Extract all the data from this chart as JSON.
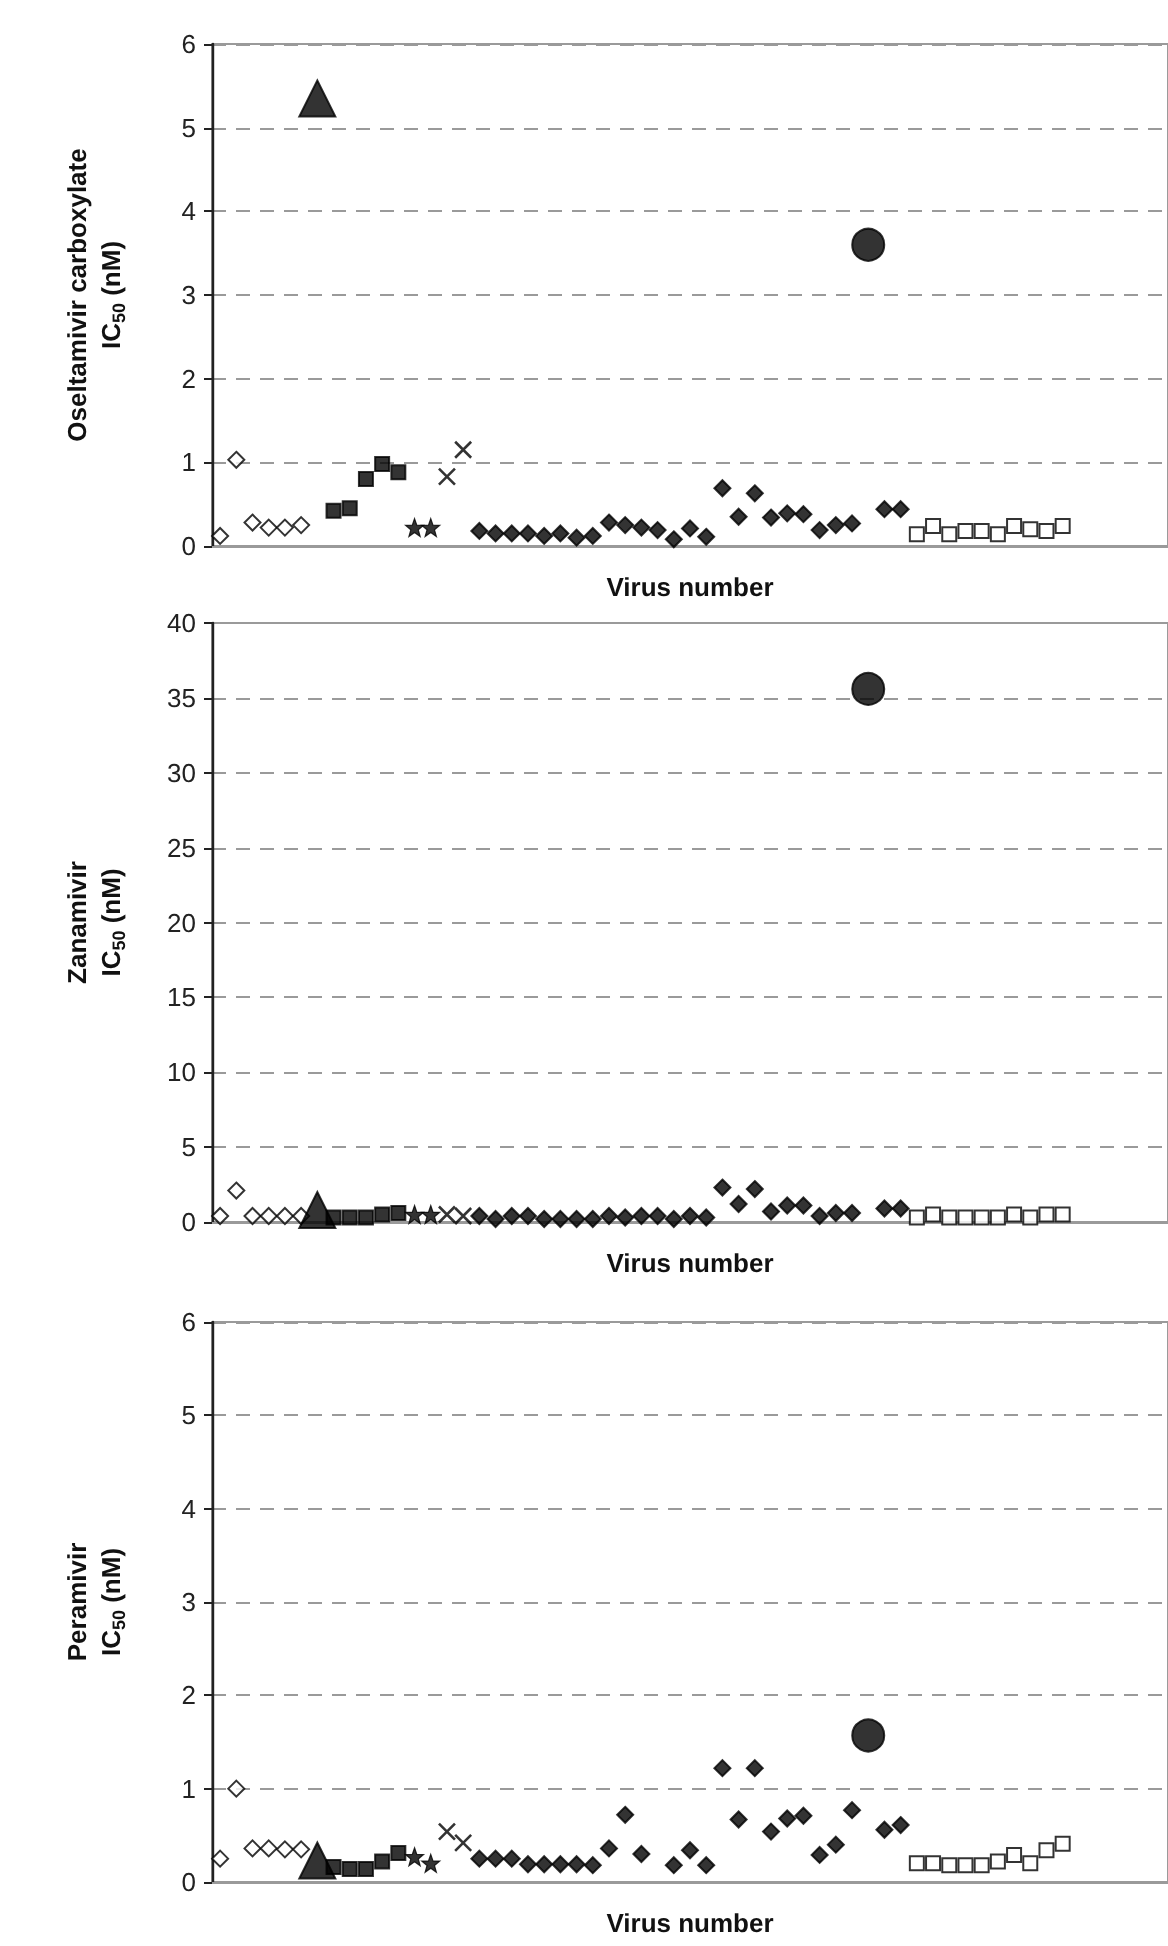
{
  "chart_data": [
    {
      "type": "scatter",
      "ylabel": "Oseltamivir carboxylate\nIC$_{50}$ (nM)",
      "xlabel": "Virus number",
      "tick_labels": "y",
      "grid": "y",
      "ylim": [
        0,
        6
      ],
      "yticks": [
        0,
        1,
        2,
        3,
        4,
        5,
        6
      ],
      "categories": [
        null,
        null,
        null,
        null,
        null,
        null,
        null,
        null,
        null,
        null,
        null,
        null,
        null,
        null,
        null,
        null,
        null,
        null,
        null,
        null,
        null,
        null,
        null,
        null,
        null,
        null,
        null,
        null,
        null,
        null,
        null,
        null,
        null,
        null,
        null,
        null,
        null,
        null,
        null,
        null,
        null,
        null,
        null,
        null,
        null,
        null,
        null,
        null,
        null,
        null,
        null,
        null,
        null,
        null,
        null,
        null,
        null,
        null,
        null
      ],
      "series": [
        {
          "color": "#ffffff",
          "marker": "diamond",
          "values": [
            0.12,
            1.03,
            0.28,
            0.22,
            0.22,
            0.25,
            null,
            null,
            null,
            null,
            null,
            null,
            null,
            null,
            null,
            null,
            null,
            null,
            null,
            null,
            null,
            null,
            null,
            null,
            null,
            null,
            null,
            null,
            null,
            null,
            null,
            null,
            null,
            null,
            null,
            null,
            null,
            null,
            null,
            null,
            null,
            null,
            null,
            null,
            null,
            null,
            null,
            null,
            null,
            null,
            null,
            null,
            null,
            null,
            null,
            null,
            null,
            null,
            null
          ]
        },
        {
          "color": "#000000",
          "marker": "triangle",
          "values": [
            null,
            null,
            null,
            null,
            null,
            null,
            5.35,
            null,
            null,
            null,
            null,
            null,
            null,
            null,
            null,
            null,
            null,
            null,
            null,
            null,
            null,
            null,
            null,
            null,
            null,
            null,
            null,
            null,
            null,
            null,
            null,
            null,
            null,
            null,
            null,
            null,
            null,
            null,
            null,
            null,
            null,
            null,
            null,
            null,
            null,
            null,
            null,
            null,
            null,
            null,
            null,
            null,
            null,
            null,
            null,
            null,
            null,
            null,
            null
          ]
        },
        {
          "color": "#000000",
          "marker": "square",
          "values": [
            null,
            null,
            null,
            null,
            null,
            null,
            null,
            0.42,
            0.45,
            0.8,
            0.98,
            0.88,
            null,
            null,
            null,
            null,
            null,
            null,
            null,
            null,
            null,
            null,
            null,
            null,
            null,
            null,
            null,
            null,
            null,
            null,
            null,
            null,
            null,
            null,
            null,
            null,
            null,
            null,
            null,
            null,
            null,
            null,
            null,
            null,
            null,
            null,
            null,
            null,
            null,
            null,
            null,
            null,
            null,
            null,
            null,
            null,
            null,
            null,
            null
          ]
        },
        {
          "color": "#000000",
          "marker": "star",
          "values": [
            null,
            null,
            null,
            null,
            null,
            null,
            null,
            null,
            null,
            null,
            null,
            null,
            0.22,
            0.22,
            null,
            null,
            null,
            null,
            null,
            null,
            null,
            null,
            null,
            null,
            null,
            null,
            null,
            null,
            null,
            null,
            null,
            null,
            null,
            null,
            null,
            null,
            null,
            null,
            null,
            null,
            null,
            null,
            null,
            null,
            null,
            null,
            null,
            null,
            null,
            null,
            null,
            null,
            null,
            null,
            null,
            null,
            null,
            null,
            null
          ]
        },
        {
          "color": "#000000",
          "marker": "cross",
          "values": [
            null,
            null,
            null,
            null,
            null,
            null,
            null,
            null,
            null,
            null,
            null,
            null,
            null,
            null,
            0.83,
            1.15,
            null,
            null,
            null,
            null,
            null,
            null,
            null,
            null,
            null,
            null,
            null,
            null,
            null,
            null,
            null,
            null,
            null,
            null,
            null,
            null,
            null,
            null,
            null,
            null,
            null,
            null,
            null,
            null,
            null,
            null,
            null,
            null,
            null,
            null,
            null,
            null,
            null,
            null,
            null,
            null,
            null,
            null,
            null
          ]
        },
        {
          "color": "#000000",
          "marker": "diamond",
          "values": [
            null,
            null,
            null,
            null,
            null,
            null,
            null,
            null,
            null,
            null,
            null,
            null,
            null,
            null,
            null,
            null,
            0.18,
            0.15,
            0.15,
            0.15,
            0.12,
            0.15,
            0.1,
            0.12,
            0.28,
            0.25,
            0.22,
            0.19,
            0.08,
            0.21,
            0.11,
            0.69,
            0.35,
            0.63,
            0.34,
            0.39,
            0.38,
            0.19,
            0.25,
            0.27,
            null,
            0.44,
            0.44,
            null,
            null,
            null,
            null,
            null,
            null,
            null,
            null,
            null,
            null,
            null,
            null,
            null,
            null,
            null,
            null
          ]
        },
        {
          "color": "#000000",
          "marker": "circle",
          "values": [
            null,
            null,
            null,
            null,
            null,
            null,
            null,
            null,
            null,
            null,
            null,
            null,
            null,
            null,
            null,
            null,
            null,
            null,
            null,
            null,
            null,
            null,
            null,
            null,
            null,
            null,
            null,
            null,
            null,
            null,
            null,
            null,
            null,
            null,
            null,
            null,
            null,
            null,
            null,
            null,
            3.6,
            null,
            null,
            null,
            null,
            null,
            null,
            null,
            null,
            null,
            null,
            null,
            null,
            null,
            null,
            null,
            null,
            null,
            null
          ]
        },
        {
          "color": "#ffffff",
          "marker": "square",
          "values": [
            null,
            null,
            null,
            null,
            null,
            null,
            null,
            null,
            null,
            null,
            null,
            null,
            null,
            null,
            null,
            null,
            null,
            null,
            null,
            null,
            null,
            null,
            null,
            null,
            null,
            null,
            null,
            null,
            null,
            null,
            null,
            null,
            null,
            null,
            null,
            null,
            null,
            null,
            null,
            null,
            null,
            null,
            null,
            0.14,
            0.24,
            0.14,
            0.18,
            0.18,
            0.14,
            0.24,
            0.2,
            0.18,
            0.24,
            null,
            null,
            null,
            null,
            null,
            null
          ]
        }
      ]
    },
    {
      "type": "scatter",
      "ylabel": "Zanamivir\nIC$_{50}$ (nM)",
      "xlabel": "Virus number",
      "tick_labels": "y",
      "grid": "y",
      "ylim": [
        0,
        40
      ],
      "yticks": [
        0,
        5,
        10,
        15,
        20,
        25,
        30,
        35,
        40
      ],
      "categories": [
        null,
        null,
        null,
        null,
        null,
        null,
        null,
        null,
        null,
        null,
        null,
        null,
        null,
        null,
        null,
        null,
        null,
        null,
        null,
        null,
        null,
        null,
        null,
        null,
        null,
        null,
        null,
        null,
        null,
        null,
        null,
        null,
        null,
        null,
        null,
        null,
        null,
        null,
        null,
        null,
        null,
        null,
        null,
        null,
        null,
        null,
        null,
        null,
        null,
        null,
        null,
        null,
        null,
        null,
        null,
        null,
        null,
        null,
        null
      ],
      "series": [
        {
          "color": "#ffffff",
          "marker": "diamond",
          "values": [
            0.4,
            2.1,
            0.4,
            0.4,
            0.4,
            0.4,
            null,
            null,
            null,
            null,
            null,
            null,
            null,
            null,
            null,
            null,
            null,
            null,
            null,
            null,
            null,
            null,
            null,
            null,
            null,
            null,
            null,
            null,
            null,
            null,
            null,
            null,
            null,
            null,
            null,
            null,
            null,
            null,
            null,
            null,
            null,
            null,
            null,
            null,
            null,
            null,
            null,
            null,
            null,
            null,
            null,
            null,
            null,
            null,
            null,
            null,
            null,
            null,
            null
          ]
        },
        {
          "color": "#000000",
          "marker": "triangle",
          "values": [
            null,
            null,
            null,
            null,
            null,
            null,
            0.8,
            null,
            null,
            null,
            null,
            null,
            null,
            null,
            null,
            null,
            null,
            null,
            null,
            null,
            null,
            null,
            null,
            null,
            null,
            null,
            null,
            null,
            null,
            null,
            null,
            null,
            null,
            null,
            null,
            null,
            null,
            null,
            null,
            null,
            null,
            null,
            null,
            null,
            null,
            null,
            null,
            null,
            null,
            null,
            null,
            null,
            null,
            null,
            null,
            null,
            null,
            null,
            null
          ]
        },
        {
          "color": "#000000",
          "marker": "square",
          "values": [
            null,
            null,
            null,
            null,
            null,
            null,
            null,
            0.3,
            0.3,
            0.3,
            0.5,
            0.6,
            null,
            null,
            null,
            null,
            null,
            null,
            null,
            null,
            null,
            null,
            null,
            null,
            null,
            null,
            null,
            null,
            null,
            null,
            null,
            null,
            null,
            null,
            null,
            null,
            null,
            null,
            null,
            null,
            null,
            null,
            null,
            null,
            null,
            null,
            null,
            null,
            null,
            null,
            null,
            null,
            null,
            null,
            null,
            null,
            null,
            null,
            null
          ]
        },
        {
          "color": "#000000",
          "marker": "star",
          "values": [
            null,
            null,
            null,
            null,
            null,
            null,
            null,
            null,
            null,
            null,
            null,
            null,
            0.5,
            0.5,
            null,
            null,
            null,
            null,
            null,
            null,
            null,
            null,
            null,
            null,
            null,
            null,
            null,
            null,
            null,
            null,
            null,
            null,
            null,
            null,
            null,
            null,
            null,
            null,
            null,
            null,
            null,
            null,
            null,
            null,
            null,
            null,
            null,
            null,
            null,
            null,
            null,
            null,
            null,
            null,
            null,
            null,
            null,
            null,
            null
          ]
        },
        {
          "color": "#000000",
          "marker": "cross",
          "values": [
            null,
            null,
            null,
            null,
            null,
            null,
            null,
            null,
            null,
            null,
            null,
            null,
            null,
            null,
            0.5,
            0.4,
            null,
            null,
            null,
            null,
            null,
            null,
            null,
            null,
            null,
            null,
            null,
            null,
            null,
            null,
            null,
            null,
            null,
            null,
            null,
            null,
            null,
            null,
            null,
            null,
            null,
            null,
            null,
            null,
            null,
            null,
            null,
            null,
            null,
            null,
            null,
            null,
            null,
            null,
            null,
            null,
            null,
            null,
            null
          ]
        },
        {
          "color": "#000000",
          "marker": "diamond",
          "values": [
            null,
            null,
            null,
            null,
            null,
            null,
            null,
            null,
            null,
            null,
            null,
            null,
            null,
            null,
            null,
            null,
            0.4,
            0.2,
            0.4,
            0.4,
            0.2,
            0.2,
            0.2,
            0.2,
            0.4,
            0.3,
            0.4,
            0.4,
            0.2,
            0.4,
            0.3,
            2.3,
            1.2,
            2.2,
            0.7,
            1.1,
            1.1,
            0.4,
            0.6,
            0.6,
            null,
            0.9,
            0.9,
            null,
            null,
            null,
            null,
            null,
            null,
            null,
            null,
            null,
            null,
            null,
            null,
            null,
            null,
            null,
            null
          ]
        },
        {
          "color": "#000000",
          "marker": "circle",
          "values": [
            null,
            null,
            null,
            null,
            null,
            null,
            null,
            null,
            null,
            null,
            null,
            null,
            null,
            null,
            null,
            null,
            null,
            null,
            null,
            null,
            null,
            null,
            null,
            null,
            null,
            null,
            null,
            null,
            null,
            null,
            null,
            null,
            null,
            null,
            null,
            null,
            null,
            null,
            null,
            null,
            35.6,
            null,
            null,
            null,
            null,
            null,
            null,
            null,
            null,
            null,
            null,
            null,
            null,
            null,
            null,
            null,
            null,
            null,
            null
          ]
        },
        {
          "color": "#ffffff",
          "marker": "square",
          "values": [
            null,
            null,
            null,
            null,
            null,
            null,
            null,
            null,
            null,
            null,
            null,
            null,
            null,
            null,
            null,
            null,
            null,
            null,
            null,
            null,
            null,
            null,
            null,
            null,
            null,
            null,
            null,
            null,
            null,
            null,
            null,
            null,
            null,
            null,
            null,
            null,
            null,
            null,
            null,
            null,
            null,
            null,
            null,
            0.3,
            0.5,
            0.3,
            0.3,
            0.3,
            0.3,
            0.5,
            0.3,
            0.5,
            0.5,
            null,
            null,
            null,
            null,
            null,
            null
          ]
        }
      ]
    },
    {
      "type": "scatter",
      "ylabel": "Peramivir\nIC$_{50}$ (nM)",
      "xlabel": "Virus number",
      "tick_labels": "y",
      "grid": "y",
      "ylim": [
        0,
        6
      ],
      "yticks": [
        0,
        1,
        2,
        3,
        4,
        5,
        6
      ],
      "categories": [
        null,
        null,
        null,
        null,
        null,
        null,
        null,
        null,
        null,
        null,
        null,
        null,
        null,
        null,
        null,
        null,
        null,
        null,
        null,
        null,
        null,
        null,
        null,
        null,
        null,
        null,
        null,
        null,
        null,
        null,
        null,
        null,
        null,
        null,
        null,
        null,
        null,
        null,
        null,
        null,
        null,
        null,
        null,
        null,
        null,
        null,
        null,
        null,
        null,
        null,
        null,
        null,
        null,
        null,
        null,
        null,
        null,
        null,
        null
      ],
      "series": [
        {
          "color": "#ffffff",
          "marker": "diamond",
          "values": [
            0.25,
            1.0,
            0.36,
            0.36,
            0.35,
            0.35,
            null,
            null,
            null,
            null,
            null,
            null,
            null,
            null,
            null,
            null,
            null,
            null,
            null,
            null,
            null,
            null,
            null,
            null,
            null,
            null,
            null,
            null,
            null,
            null,
            null,
            null,
            null,
            null,
            null,
            null,
            null,
            null,
            null,
            null,
            null,
            null,
            null,
            null,
            null,
            null,
            null,
            null,
            null,
            null,
            null,
            null,
            null,
            null,
            null,
            null,
            null,
            null,
            null
          ]
        },
        {
          "color": "#000000",
          "marker": "triangle",
          "values": [
            null,
            null,
            null,
            null,
            null,
            null,
            0.23,
            null,
            null,
            null,
            null,
            null,
            null,
            null,
            null,
            null,
            null,
            null,
            null,
            null,
            null,
            null,
            null,
            null,
            null,
            null,
            null,
            null,
            null,
            null,
            null,
            null,
            null,
            null,
            null,
            null,
            null,
            null,
            null,
            null,
            null,
            null,
            null,
            null,
            null,
            null,
            null,
            null,
            null,
            null,
            null,
            null,
            null,
            null,
            null,
            null,
            null,
            null,
            null
          ]
        },
        {
          "color": "#000000",
          "marker": "square",
          "values": [
            null,
            null,
            null,
            null,
            null,
            null,
            null,
            0.16,
            0.14,
            0.14,
            0.22,
            0.31,
            null,
            null,
            null,
            null,
            null,
            null,
            null,
            null,
            null,
            null,
            null,
            null,
            null,
            null,
            null,
            null,
            null,
            null,
            null,
            null,
            null,
            null,
            null,
            null,
            null,
            null,
            null,
            null,
            null,
            null,
            null,
            null,
            null,
            null,
            null,
            null,
            null,
            null,
            null,
            null,
            null,
            null,
            null,
            null,
            null,
            null,
            null
          ]
        },
        {
          "color": "#000000",
          "marker": "star",
          "values": [
            null,
            null,
            null,
            null,
            null,
            null,
            null,
            null,
            null,
            null,
            null,
            null,
            0.27,
            0.2,
            null,
            null,
            null,
            null,
            null,
            null,
            null,
            null,
            null,
            null,
            null,
            null,
            null,
            null,
            null,
            null,
            null,
            null,
            null,
            null,
            null,
            null,
            null,
            null,
            null,
            null,
            null,
            null,
            null,
            null,
            null,
            null,
            null,
            null,
            null,
            null,
            null,
            null,
            null,
            null,
            null,
            null,
            null,
            null,
            null
          ]
        },
        {
          "color": "#000000",
          "marker": "cross",
          "values": [
            null,
            null,
            null,
            null,
            null,
            null,
            null,
            null,
            null,
            null,
            null,
            null,
            null,
            null,
            0.54,
            0.42,
            null,
            null,
            null,
            null,
            null,
            null,
            null,
            null,
            null,
            null,
            null,
            null,
            null,
            null,
            null,
            null,
            null,
            null,
            null,
            null,
            null,
            null,
            null,
            null,
            null,
            null,
            null,
            null,
            null,
            null,
            null,
            null,
            null,
            null,
            null,
            null,
            null,
            null,
            null,
            null,
            null,
            null,
            null
          ]
        },
        {
          "color": "#000000",
          "marker": "diamond",
          "values": [
            null,
            null,
            null,
            null,
            null,
            null,
            null,
            null,
            null,
            null,
            null,
            null,
            null,
            null,
            null,
            null,
            0.25,
            0.25,
            0.25,
            0.19,
            0.19,
            0.19,
            0.19,
            0.18,
            0.36,
            0.72,
            0.3,
            null,
            0.18,
            0.34,
            0.18,
            1.22,
            0.67,
            1.22,
            0.54,
            0.68,
            0.71,
            0.29,
            0.4,
            0.77,
            null,
            0.56,
            0.61,
            null,
            null,
            null,
            null,
            null,
            null,
            null,
            null,
            null,
            null,
            null,
            null,
            null,
            null,
            null,
            null
          ]
        },
        {
          "color": "#000000",
          "marker": "circle",
          "values": [
            null,
            null,
            null,
            null,
            null,
            null,
            null,
            null,
            null,
            null,
            null,
            null,
            null,
            null,
            null,
            null,
            null,
            null,
            null,
            null,
            null,
            null,
            null,
            null,
            null,
            null,
            null,
            null,
            null,
            null,
            null,
            null,
            null,
            null,
            null,
            null,
            null,
            null,
            null,
            null,
            1.57,
            null,
            null,
            null,
            null,
            null,
            null,
            null,
            null,
            null,
            null,
            null,
            null,
            null,
            null,
            null,
            null,
            null,
            null
          ]
        },
        {
          "color": "#ffffff",
          "marker": "square",
          "values": [
            null,
            null,
            null,
            null,
            null,
            null,
            null,
            null,
            null,
            null,
            null,
            null,
            null,
            null,
            null,
            null,
            null,
            null,
            null,
            null,
            null,
            null,
            null,
            null,
            null,
            null,
            null,
            null,
            null,
            null,
            null,
            null,
            null,
            null,
            null,
            null,
            null,
            null,
            null,
            null,
            null,
            null,
            null,
            0.2,
            0.2,
            0.18,
            0.18,
            0.18,
            0.22,
            0.29,
            0.2,
            0.34,
            0.41,
            null,
            null,
            null,
            null,
            null,
            null
          ]
        }
      ]
    }
  ]
}
